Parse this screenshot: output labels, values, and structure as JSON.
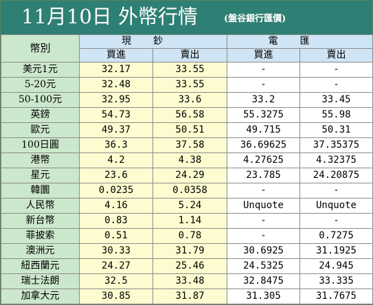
{
  "title": {
    "main": "11月10日 外幣行情",
    "source": "(盤谷銀行匯價)"
  },
  "header": {
    "currency": "幣別",
    "cash": "現鈔",
    "wire": "電匯",
    "buy": "買進",
    "sell": "賣出"
  },
  "rows": [
    {
      "name": "美元1元",
      "cash_buy": "32.17",
      "cash_sell": "33.55",
      "wire_buy": "-",
      "wire_sell": "-"
    },
    {
      "name": "5-20元",
      "cash_buy": "32.48",
      "cash_sell": "33.55",
      "wire_buy": "-",
      "wire_sell": "-"
    },
    {
      "name": "50-100元",
      "cash_buy": "32.95",
      "cash_sell": "33.6",
      "wire_buy": "33.2",
      "wire_sell": "33.45"
    },
    {
      "name": "英鎊",
      "cash_buy": "54.73",
      "cash_sell": "56.58",
      "wire_buy": "55.3275",
      "wire_sell": "55.98"
    },
    {
      "name": "歐元",
      "cash_buy": "49.37",
      "cash_sell": "50.51",
      "wire_buy": "49.715",
      "wire_sell": "50.31"
    },
    {
      "name": "100日圓",
      "cash_buy": "36.3",
      "cash_sell": "37.58",
      "wire_buy": "36.69625",
      "wire_sell": "37.35375"
    },
    {
      "name": "港幣",
      "cash_buy": "4.2",
      "cash_sell": "4.38",
      "wire_buy": "4.27625",
      "wire_sell": "4.32375"
    },
    {
      "name": "星元",
      "cash_buy": "23.6",
      "cash_sell": "24.29",
      "wire_buy": "23.785",
      "wire_sell": "24.20875"
    },
    {
      "name": "韓圜",
      "cash_buy": "0.0235",
      "cash_sell": "0.0358",
      "wire_buy": "-",
      "wire_sell": "-"
    },
    {
      "name": "人民幣",
      "cash_buy": "4.16",
      "cash_sell": "5.24",
      "wire_buy": "Unquote",
      "wire_sell": "Unquote"
    },
    {
      "name": "新台幣",
      "cash_buy": "0.83",
      "cash_sell": "1.14",
      "wire_buy": "-",
      "wire_sell": "-"
    },
    {
      "name": "菲披索",
      "cash_buy": "0.51",
      "cash_sell": "0.78",
      "wire_buy": "-",
      "wire_sell": "0.7275"
    },
    {
      "name": "澳洲元",
      "cash_buy": "30.33",
      "cash_sell": "31.79",
      "wire_buy": "30.6925",
      "wire_sell": "31.1925"
    },
    {
      "name": "紐西蘭元",
      "cash_buy": "24.27",
      "cash_sell": "25.46",
      "wire_buy": "24.5325",
      "wire_sell": "24.945"
    },
    {
      "name": "瑞士法朗",
      "cash_buy": "32.5",
      "cash_sell": "33.48",
      "wire_buy": "32.8475",
      "wire_sell": "33.335"
    },
    {
      "name": "加拿大元",
      "cash_buy": "30.85",
      "cash_sell": "31.87",
      "wire_buy": "31.305",
      "wire_sell": "31.7675"
    }
  ],
  "colors": {
    "title_bg": "#2e7f74",
    "currency_col_bg": "#cce8cc",
    "header_bg": "#cfe4f4",
    "cash_col_bg": "#fdfcd0",
    "wire_col_bg": "#ffffff"
  }
}
